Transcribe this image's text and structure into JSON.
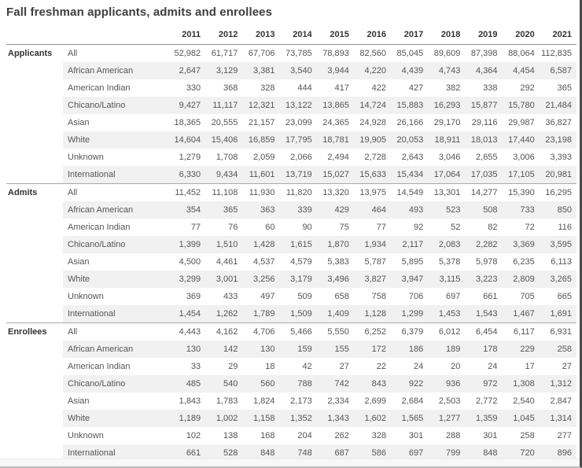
{
  "title": "Fall freshman applicants, admits and enrollees",
  "colors": {
    "stripe": "#f1f1f1",
    "header_border": "#8f8f8f",
    "section_border": "#a8a8a8",
    "text": "#555555",
    "heading_text": "#3f3f3f"
  },
  "chart_data": {
    "type": "table",
    "title": "Fall freshman applicants, admits and enrollees",
    "columns": [
      "2011",
      "2012",
      "2013",
      "2014",
      "2015",
      "2016",
      "2017",
      "2018",
      "2019",
      "2020",
      "2021"
    ],
    "sections": [
      {
        "label": "Applicants",
        "rows": [
          {
            "label": "All",
            "values": [
              "52,982",
              "61,717",
              "67,706",
              "73,785",
              "78,893",
              "82,560",
              "85,045",
              "89,609",
              "87,398",
              "88,064",
              "112,835"
            ]
          },
          {
            "label": "African American",
            "values": [
              "2,647",
              "3,129",
              "3,381",
              "3,540",
              "3,944",
              "4,220",
              "4,439",
              "4,743",
              "4,364",
              "4,454",
              "6,587"
            ]
          },
          {
            "label": "American Indian",
            "values": [
              "330",
              "368",
              "328",
              "444",
              "417",
              "422",
              "427",
              "382",
              "338",
              "292",
              "365"
            ]
          },
          {
            "label": "Chicano/Latino",
            "values": [
              "9,427",
              "11,117",
              "12,321",
              "13,122",
              "13,865",
              "14,724",
              "15,883",
              "16,293",
              "15,877",
              "15,780",
              "21,484"
            ]
          },
          {
            "label": "Asian",
            "values": [
              "18,365",
              "20,555",
              "21,157",
              "23,099",
              "24,365",
              "24,928",
              "26,166",
              "29,170",
              "29,116",
              "29,987",
              "36,827"
            ]
          },
          {
            "label": "White",
            "values": [
              "14,604",
              "15,406",
              "16,859",
              "17,795",
              "18,781",
              "19,905",
              "20,053",
              "18,911",
              "18,013",
              "17,440",
              "23,198"
            ]
          },
          {
            "label": "Unknown",
            "values": [
              "1,279",
              "1,708",
              "2,059",
              "2,066",
              "2,494",
              "2,728",
              "2,643",
              "3,046",
              "2,655",
              "3,006",
              "3,393"
            ]
          },
          {
            "label": "International",
            "values": [
              "6,330",
              "9,434",
              "11,601",
              "13,719",
              "15,027",
              "15,633",
              "15,434",
              "17,064",
              "17,035",
              "17,105",
              "20,981"
            ]
          }
        ]
      },
      {
        "label": "Admits",
        "rows": [
          {
            "label": "All",
            "values": [
              "11,452",
              "11,108",
              "11,930",
              "11,820",
              "13,320",
              "13,975",
              "14,549",
              "13,301",
              "14,277",
              "15,390",
              "16,295"
            ]
          },
          {
            "label": "African American",
            "values": [
              "354",
              "365",
              "363",
              "339",
              "429",
              "464",
              "493",
              "523",
              "508",
              "733",
              "850"
            ]
          },
          {
            "label": "American Indian",
            "values": [
              "77",
              "76",
              "60",
              "90",
              "75",
              "77",
              "92",
              "52",
              "82",
              "72",
              "116"
            ]
          },
          {
            "label": "Chicano/Latino",
            "values": [
              "1,399",
              "1,510",
              "1,428",
              "1,615",
              "1,870",
              "1,934",
              "2,117",
              "2,083",
              "2,282",
              "3,369",
              "3,595"
            ]
          },
          {
            "label": "Asian",
            "values": [
              "4,500",
              "4,461",
              "4,537",
              "4,579",
              "5,383",
              "5,787",
              "5,895",
              "5,378",
              "5,978",
              "6,235",
              "6,113"
            ]
          },
          {
            "label": "White",
            "values": [
              "3,299",
              "3,001",
              "3,256",
              "3,179",
              "3,496",
              "3,827",
              "3,947",
              "3,115",
              "3,223",
              "2,809",
              "3,265"
            ]
          },
          {
            "label": "Unknown",
            "values": [
              "369",
              "433",
              "497",
              "509",
              "658",
              "758",
              "706",
              "697",
              "661",
              "705",
              "665"
            ]
          },
          {
            "label": "International",
            "values": [
              "1,454",
              "1,262",
              "1,789",
              "1,509",
              "1,409",
              "1,128",
              "1,299",
              "1,453",
              "1,543",
              "1,467",
              "1,691"
            ]
          }
        ]
      },
      {
        "label": "Enrollees",
        "rows": [
          {
            "label": "All",
            "values": [
              "4,443",
              "4,162",
              "4,706",
              "5,466",
              "5,550",
              "6,252",
              "6,379",
              "6,012",
              "6,454",
              "6,117",
              "6,931"
            ]
          },
          {
            "label": "African American",
            "values": [
              "130",
              "142",
              "130",
              "159",
              "155",
              "172",
              "186",
              "189",
              "178",
              "229",
              "258"
            ]
          },
          {
            "label": "American Indian",
            "values": [
              "33",
              "29",
              "18",
              "42",
              "27",
              "22",
              "24",
              "20",
              "24",
              "17",
              "27"
            ]
          },
          {
            "label": "Chicano/Latino",
            "values": [
              "485",
              "540",
              "560",
              "788",
              "742",
              "843",
              "922",
              "936",
              "972",
              "1,308",
              "1,312"
            ]
          },
          {
            "label": "Asian",
            "values": [
              "1,843",
              "1,783",
              "1,824",
              "2,173",
              "2,334",
              "2,699",
              "2,684",
              "2,503",
              "2,772",
              "2,540",
              "2,847"
            ]
          },
          {
            "label": "White",
            "values": [
              "1,189",
              "1,002",
              "1,158",
              "1,352",
              "1,343",
              "1,602",
              "1,565",
              "1,277",
              "1,359",
              "1,045",
              "1,314"
            ]
          },
          {
            "label": "Unknown",
            "values": [
              "102",
              "138",
              "168",
              "204",
              "262",
              "328",
              "301",
              "288",
              "301",
              "258",
              "277"
            ]
          },
          {
            "label": "International",
            "values": [
              "661",
              "528",
              "848",
              "748",
              "687",
              "586",
              "697",
              "799",
              "848",
              "720",
              "896"
            ]
          }
        ]
      }
    ]
  }
}
